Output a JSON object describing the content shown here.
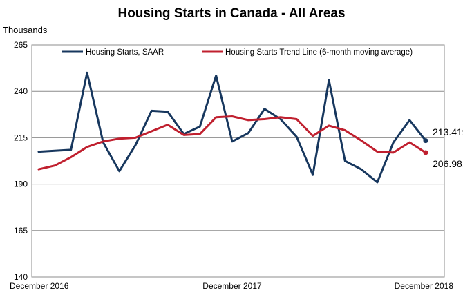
{
  "chart_data": {
    "type": "line",
    "title": "Housing Starts in Canada - All Areas",
    "ylabel": "Thousands",
    "xlabel": "",
    "ylim": [
      140,
      265
    ],
    "yticks": [
      140,
      165,
      190,
      215,
      240,
      265
    ],
    "x_tick_labels": [
      {
        "index": 0,
        "label": "December 2016"
      },
      {
        "index": 12,
        "label": "December 2017"
      },
      {
        "index": 24,
        "label": "December 2018"
      }
    ],
    "grid": true,
    "legend_placement": "top",
    "series": [
      {
        "name": "Housing Starts, SAAR",
        "color": "#17375e",
        "values": [
          207.5,
          208.0,
          208.5,
          250.0,
          212.5,
          197.0,
          211.0,
          229.5,
          229.0,
          217.0,
          221.0,
          248.5,
          213.0,
          217.5,
          230.5,
          225.0,
          215.5,
          195.0,
          246.0,
          202.5,
          198.0,
          191.0,
          212.5,
          224.5,
          213.419
        ],
        "end_label": "213.419"
      },
      {
        "name": "Housing Starts Trend Line (6-month moving average)",
        "color": "#c0202f",
        "values": [
          198.0,
          200.0,
          204.5,
          210.0,
          213.0,
          214.5,
          215.0,
          218.5,
          222.0,
          216.5,
          217.0,
          226.0,
          226.5,
          224.5,
          225.0,
          226.0,
          225.0,
          216.0,
          221.5,
          219.0,
          213.5,
          207.5,
          207.0,
          212.5,
          206.981
        ],
        "end_label": "206.981"
      }
    ]
  }
}
